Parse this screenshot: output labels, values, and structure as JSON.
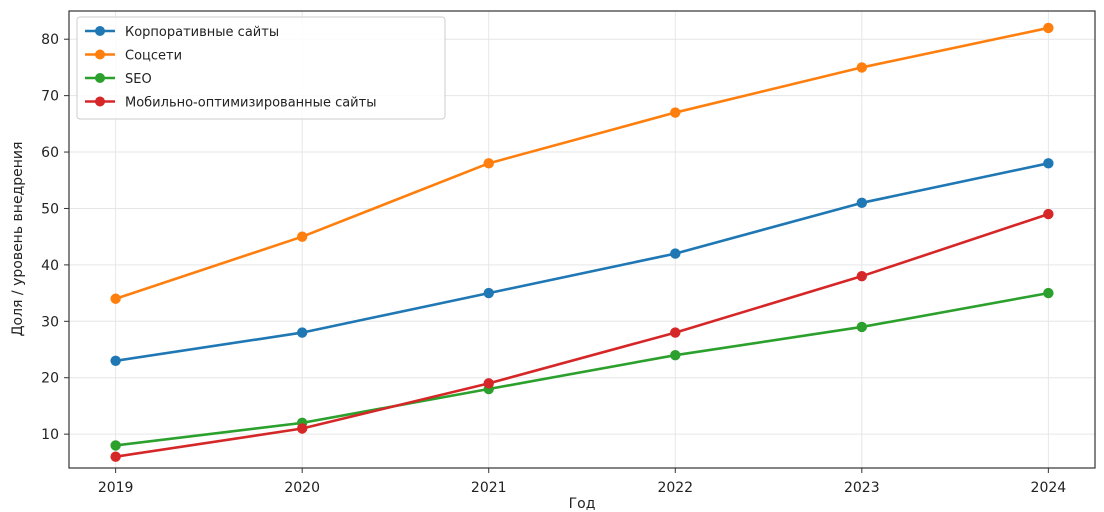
{
  "chart_data": {
    "type": "line",
    "title": "",
    "xlabel": "Год",
    "ylabel": "Доля / уровень внедрения",
    "x": [
      2019,
      2020,
      2021,
      2022,
      2023,
      2024
    ],
    "x_tick_labels": [
      "2019",
      "2020",
      "2021",
      "2022",
      "2023",
      "2024"
    ],
    "xlim": [
      2018.75,
      2024.25
    ],
    "ylim": [
      4,
      85
    ],
    "y_ticks": [
      10,
      20,
      30,
      40,
      50,
      60,
      70,
      80
    ],
    "y_tick_labels": [
      "10",
      "20",
      "30",
      "40",
      "50",
      "60",
      "70",
      "80"
    ],
    "grid": true,
    "legend_position": "top-left",
    "series": [
      {
        "name": "Корпоративные сайты",
        "color": "#1f77b4",
        "values": [
          23,
          28,
          35,
          42,
          51,
          58
        ]
      },
      {
        "name": "Соцсети",
        "color": "#ff7f0e",
        "values": [
          34,
          45,
          58,
          67,
          75,
          82
        ]
      },
      {
        "name": "SEO",
        "color": "#2ca02c",
        "values": [
          8,
          12,
          18,
          24,
          29,
          35
        ]
      },
      {
        "name": "Мобильно-оптимизированные сайты",
        "color": "#d62728",
        "values": [
          6,
          11,
          19,
          28,
          38,
          49
        ]
      }
    ]
  }
}
